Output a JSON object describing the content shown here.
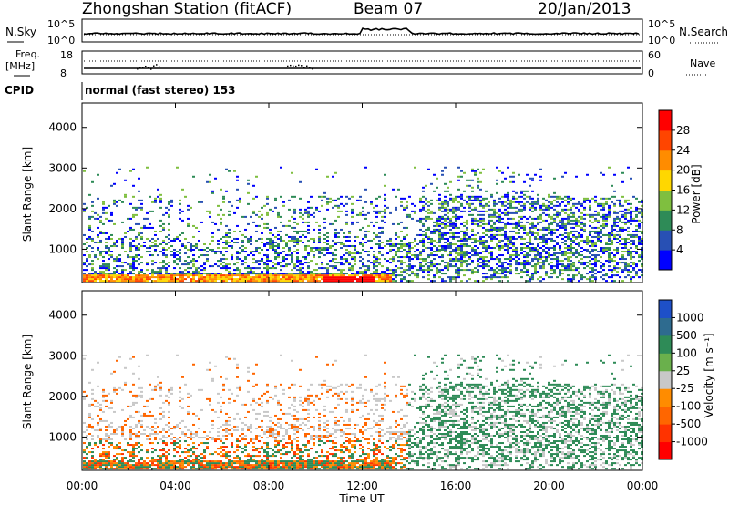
{
  "header": {
    "station": "Zhongshan Station (fitACF)",
    "beam": "Beam 07",
    "date": "20/Jan/2013"
  },
  "panels": {
    "nsky_label": "N.Sky",
    "nsearch_label": "N.Search",
    "nsky_ticks": [
      "10^5",
      "10^0"
    ],
    "nsearch_ticks": [
      "10^5",
      "10^0"
    ],
    "freq_label_1": "Freq.",
    "freq_label_2": "[MHz]",
    "freq_ticks": [
      "18",
      "8"
    ],
    "nave_label": "Nave",
    "nave_ticks": [
      "60",
      "0"
    ],
    "cpid_label": "CPID",
    "cpid_text": "normal (fast stereo) 153"
  },
  "chart_data": [
    {
      "type": "heatmap",
      "name": "power-panel",
      "ylabel": "Slant Range [km]",
      "ylim": [
        180,
        4600
      ],
      "yticks": [
        "1000",
        "2000",
        "3000",
        "4000"
      ],
      "xlim": [
        "00:00",
        "24:00"
      ],
      "colorbar_label": "Power [dB]",
      "colorbar_ticks": [
        "28",
        "24",
        "20",
        "16",
        "12",
        "8",
        "4"
      ],
      "colorbar_colors": [
        "#0000ff",
        "#2850b4",
        "#2e8b57",
        "#7fbf3f",
        "#ffd700",
        "#ff8c00",
        "#ff4500",
        "#ff0000"
      ],
      "grid": false
    },
    {
      "type": "heatmap",
      "name": "velocity-panel",
      "ylabel": "Slant Range [km]",
      "ylim": [
        180,
        4600
      ],
      "yticks": [
        "1000",
        "2000",
        "3000",
        "4000"
      ],
      "xlim": [
        "00:00",
        "24:00"
      ],
      "xticks": [
        "00:00",
        "04:00",
        "08:00",
        "12:00",
        "16:00",
        "20:00",
        "00:00"
      ],
      "xlabel": "Time UT",
      "colorbar_label": "Velocity [m s⁻¹]",
      "colorbar_ticks": [
        "1000",
        "500",
        "100",
        "25",
        "-25",
        "-100",
        "-500",
        "-1000"
      ],
      "colorbar_colors": [
        "#1e50c8",
        "#2e6b8f",
        "#2e8b57",
        "#6ab04c",
        "#c8c8c8",
        "#ff8c00",
        "#ff6600",
        "#ff3300",
        "#ff0000"
      ],
      "grid": false
    }
  ],
  "colors": {
    "axis": "#000000",
    "power_blue": "#2850b4",
    "power_red": "#ff0000",
    "velocity_gray": "#c8c8c8",
    "velocity_orange": "#ff8c00",
    "velocity_green": "#2e8b57"
  }
}
